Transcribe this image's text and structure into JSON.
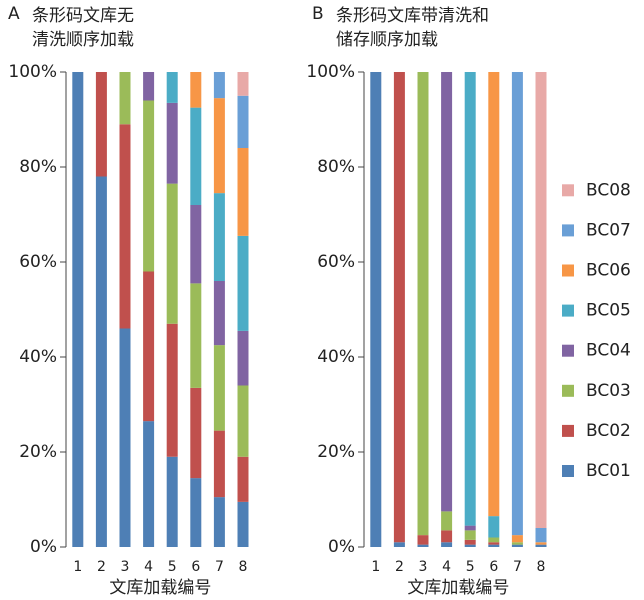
{
  "chart_data": [
    {
      "type": "stacked_bar",
      "label": "A",
      "title": [
        "条形码文库无",
        "清洗顺序加载"
      ],
      "xlabel": "文库加载编号",
      "categories": [
        "1",
        "2",
        "3",
        "4",
        "5",
        "6",
        "7",
        "8"
      ],
      "ylim": [
        0,
        100
      ],
      "yticks": [
        {
          "value": 0,
          "label": "0%"
        },
        {
          "value": 20,
          "label": "20%"
        },
        {
          "value": 40,
          "label": "40%"
        },
        {
          "value": 60,
          "label": "60%"
        },
        {
          "value": 80,
          "label": "80%"
        },
        {
          "value": 100,
          "label": "100%"
        }
      ],
      "series": [
        {
          "color": "#4e7fb5",
          "values": [
            100,
            78,
            46,
            26.5,
            19,
            14.5,
            10.5,
            9.5
          ]
        },
        {
          "color": "#c0504d",
          "values": [
            0,
            22,
            43,
            31.5,
            28,
            19,
            14,
            9.5
          ]
        },
        {
          "color": "#9bbb59",
          "values": [
            0,
            0,
            11,
            36,
            29.5,
            22,
            18,
            15
          ]
        },
        {
          "color": "#8064a2",
          "values": [
            0,
            0,
            0,
            6,
            17,
            16.5,
            13.5,
            11.5
          ]
        },
        {
          "color": "#4bacc6",
          "values": [
            0,
            0,
            0,
            0,
            6.5,
            20.5,
            18.5,
            20
          ]
        },
        {
          "color": "#f79646",
          "values": [
            0,
            0,
            0,
            0,
            0,
            7.5,
            20,
            18.5
          ]
        },
        {
          "color": "#6a9fd6",
          "values": [
            0,
            0,
            0,
            0,
            0,
            0,
            5.5,
            11
          ]
        },
        {
          "color": "#e8a9a7",
          "values": [
            0,
            0,
            0,
            0,
            0,
            0,
            0,
            5
          ]
        }
      ]
    },
    {
      "type": "stacked_bar",
      "label": "B",
      "title": [
        "条形码文库带清洗和",
        "储存顺序加载"
      ],
      "xlabel": "文库加载编号",
      "categories": [
        "1",
        "2",
        "3",
        "4",
        "5",
        "6",
        "7",
        "8"
      ],
      "ylim": [
        0,
        100
      ],
      "yticks": [
        {
          "value": 0,
          "label": "0%"
        },
        {
          "value": 20,
          "label": "20%"
        },
        {
          "value": 40,
          "label": "40%"
        },
        {
          "value": 60,
          "label": "60%"
        },
        {
          "value": 80,
          "label": "80%"
        },
        {
          "value": 100,
          "label": "100%"
        }
      ],
      "series": [
        {
          "name": "BC01",
          "color": "#4e7fb5",
          "values": [
            100,
            1,
            0.5,
            1,
            0.5,
            0.5,
            0.5,
            0.5
          ]
        },
        {
          "name": "BC02",
          "color": "#c0504d",
          "values": [
            0,
            99,
            2,
            2.5,
            1,
            0.5,
            0,
            0
          ]
        },
        {
          "name": "BC03",
          "color": "#9bbb59",
          "values": [
            0,
            0,
            97.5,
            4,
            2,
            1,
            0.5,
            0
          ]
        },
        {
          "name": "BC04",
          "color": "#8064a2",
          "values": [
            0,
            0,
            0,
            92.5,
            1,
            0,
            0,
            0
          ]
        },
        {
          "name": "BC05",
          "color": "#4bacc6",
          "values": [
            0,
            0,
            0,
            0,
            95.5,
            4.5,
            0,
            0
          ]
        },
        {
          "name": "BC06",
          "color": "#f79646",
          "values": [
            0,
            0,
            0,
            0,
            0,
            93.5,
            1.5,
            0.5
          ]
        },
        {
          "name": "BC07",
          "color": "#6a9fd6",
          "values": [
            0,
            0,
            0,
            0,
            0,
            0,
            97.5,
            3
          ]
        },
        {
          "name": "BC08",
          "color": "#e8a9a7",
          "values": [
            0,
            0,
            0,
            0,
            0,
            0,
            0,
            96
          ]
        }
      ]
    }
  ]
}
